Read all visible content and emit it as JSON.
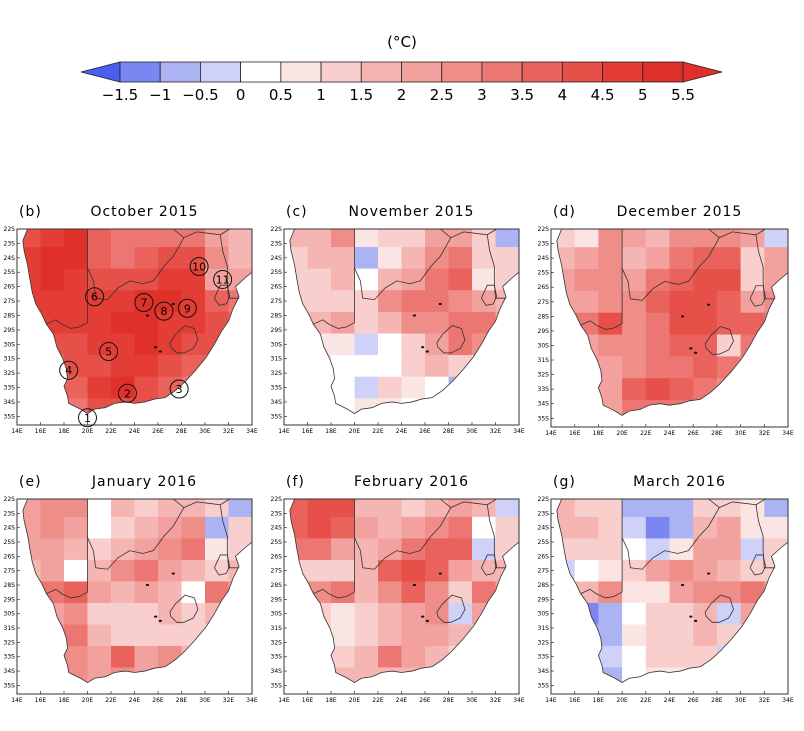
{
  "chart_data": {
    "type": "heatmap",
    "title": "",
    "colorbar": {
      "unit_label": "(°C)",
      "levels": [
        -1.5,
        -1,
        -0.5,
        0,
        0.5,
        1,
        1.5,
        2,
        2.5,
        3,
        3.5,
        4,
        4.5,
        5,
        5.5
      ],
      "tick_labels": [
        "−1.5",
        "−1",
        "−0.5",
        "0",
        "0.5",
        "1",
        "1.5",
        "2",
        "2.5",
        "3",
        "3.5",
        "4",
        "4.5",
        "5",
        "5.5"
      ],
      "colors": [
        "#4a5ef0",
        "#7b86f0",
        "#acb3f3",
        "#cfd1f8",
        "#ffffff",
        "#fbe5e4",
        "#f8cfcd",
        "#f5b6b3",
        "#f2a19e",
        "#ef8d89",
        "#ec7772",
        "#e9625c",
        "#e65048",
        "#e33d35",
        "#e0302a",
        "#e0302a"
      ],
      "extend": "both",
      "orientation": "horizontal",
      "placement": "top"
    },
    "axes": {
      "x_ticks": [
        "14E",
        "16E",
        "18E",
        "20E",
        "22E",
        "24E",
        "26E",
        "28E",
        "30E",
        "32E",
        "34E"
      ],
      "x_tick_values": [
        14,
        16,
        18,
        20,
        22,
        24,
        26,
        28,
        30,
        32,
        34
      ],
      "y_ticks": [
        "22S",
        "23S",
        "24S",
        "25S",
        "26S",
        "27S",
        "28S",
        "29S",
        "30S",
        "31S",
        "32S",
        "33S",
        "34S",
        "35S"
      ],
      "y_tick_values": [
        22,
        23,
        24,
        25,
        26,
        27,
        28,
        29,
        30,
        31,
        32,
        33,
        34,
        35
      ],
      "xlim": [
        14,
        34
      ],
      "ylim_south": [
        22,
        35.6
      ]
    },
    "grid": {
      "lon": [
        15,
        17,
        19,
        21,
        23,
        25,
        27,
        29,
        31,
        33
      ],
      "lat_south": [
        22.5,
        24,
        25.5,
        27,
        28.5,
        30,
        31.5,
        33,
        34.5
      ]
    },
    "panels": [
      {
        "letter": "(b)",
        "title": "October 2015",
        "stations": [
          {
            "label": "1",
            "lon": 20.0,
            "lat_south": 35.1
          },
          {
            "label": "2",
            "lon": 23.4,
            "lat_south": 33.4
          },
          {
            "label": "3",
            "lon": 27.8,
            "lat_south": 33.1
          },
          {
            "label": "4",
            "lon": 18.4,
            "lat_south": 31.8
          },
          {
            "label": "5",
            "lon": 21.8,
            "lat_south": 30.5
          },
          {
            "label": "6",
            "lon": 20.6,
            "lat_south": 26.7
          },
          {
            "label": "7",
            "lon": 24.8,
            "lat_south": 27.1
          },
          {
            "label": "8",
            "lon": 26.5,
            "lat_south": 27.7
          },
          {
            "label": "9",
            "lon": 28.5,
            "lat_south": 27.5
          },
          {
            "label": "10",
            "lon": 29.5,
            "lat_south": 24.6
          },
          {
            "label": "11",
            "lon": 31.5,
            "lat_south": 25.5
          }
        ],
        "values": [
          [
            4.2,
            4.8,
            5.0,
            3.6,
            3.0,
            3.2,
            3.4,
            3.0,
            2.4,
            1.6
          ],
          [
            4.6,
            5.0,
            5.0,
            3.8,
            3.4,
            3.6,
            4.2,
            4.0,
            2.6,
            1.8
          ],
          [
            4.8,
            5.0,
            4.8,
            4.4,
            4.0,
            4.4,
            4.8,
            4.6,
            2.0,
            2.2
          ],
          [
            4.6,
            4.8,
            4.6,
            4.6,
            4.8,
            5.0,
            5.0,
            4.8,
            3.8,
            3.0
          ],
          [
            4.0,
            4.6,
            4.6,
            4.8,
            5.0,
            5.0,
            4.8,
            4.6,
            4.4,
            3.6
          ],
          [
            3.6,
            4.2,
            4.4,
            4.6,
            4.8,
            5.0,
            4.6,
            4.4,
            4.2,
            3.4
          ],
          [
            3.2,
            3.8,
            4.0,
            4.4,
            4.6,
            4.6,
            4.2,
            3.8,
            3.0,
            2.6
          ],
          [
            3.0,
            3.4,
            3.6,
            4.6,
            5.0,
            4.4,
            3.8,
            3.2,
            2.4,
            2.0
          ],
          [
            2.8,
            3.0,
            3.4,
            4.0,
            4.4,
            4.0,
            3.4,
            2.8,
            2.2,
            1.8
          ]
        ]
      },
      {
        "letter": "(c)",
        "title": "November 2015",
        "stations": [],
        "values": [
          [
            1.6,
            1.8,
            2.6,
            0.6,
            1.4,
            1.4,
            2.0,
            2.2,
            1.4,
            -0.8
          ],
          [
            1.4,
            1.6,
            1.8,
            -0.6,
            0.8,
            1.8,
            2.8,
            3.2,
            1.2,
            1.0
          ],
          [
            1.2,
            1.4,
            1.6,
            0.4,
            1.6,
            2.4,
            3.4,
            3.6,
            0.6,
            1.2
          ],
          [
            1.0,
            1.2,
            1.0,
            1.4,
            2.6,
            3.2,
            3.0,
            2.8,
            2.4,
            1.6
          ],
          [
            1.4,
            1.6,
            2.4,
            1.2,
            1.6,
            2.8,
            2.6,
            3.4,
            3.2,
            2.2
          ],
          [
            0.6,
            0.8,
            0.6,
            -0.2,
            0.4,
            1.4,
            2.4,
            3.0,
            2.6,
            1.8
          ],
          [
            0.8,
            0.6,
            0.4,
            0.0,
            0.4,
            1.0,
            1.6,
            1.2,
            0.6,
            0.4
          ],
          [
            1.0,
            0.8,
            0.4,
            -0.2,
            1.4,
            0.6,
            0.2,
            -0.6,
            0.0,
            0.2
          ],
          [
            0.8,
            0.6,
            0.4,
            0.6,
            0.8,
            0.4,
            0.2,
            0.0,
            0.0,
            0.0
          ]
        ]
      },
      {
        "letter": "(d)",
        "title": "December 2015",
        "stations": [],
        "values": [
          [
            1.0,
            0.6,
            2.6,
            2.2,
            1.8,
            2.6,
            2.8,
            2.8,
            2.2,
            -0.4
          ],
          [
            1.8,
            2.4,
            2.6,
            1.8,
            2.2,
            3.2,
            3.6,
            3.6,
            1.4,
            2.0
          ],
          [
            2.2,
            2.8,
            2.6,
            2.4,
            3.0,
            3.6,
            4.2,
            4.0,
            1.2,
            2.4
          ],
          [
            2.4,
            2.2,
            2.8,
            2.8,
            3.6,
            4.4,
            4.2,
            3.8,
            2.4,
            2.6
          ],
          [
            2.6,
            3.2,
            4.0,
            2.6,
            3.2,
            4.0,
            4.2,
            3.6,
            3.8,
            3.0
          ],
          [
            2.2,
            2.4,
            2.6,
            2.8,
            3.0,
            3.6,
            3.8,
            1.4,
            3.4,
            3.2
          ],
          [
            2.0,
            2.2,
            2.4,
            2.8,
            3.2,
            3.4,
            3.6,
            3.2,
            2.8,
            2.4
          ],
          [
            1.6,
            1.4,
            2.2,
            3.6,
            4.2,
            3.6,
            3.2,
            2.8,
            2.4,
            2.0
          ],
          [
            1.4,
            1.6,
            2.4,
            3.0,
            3.2,
            3.0,
            2.6,
            2.4,
            2.0,
            1.8
          ]
        ]
      },
      {
        "letter": "(e)",
        "title": "January 2016",
        "stations": [],
        "values": [
          [
            2.4,
            2.6,
            2.8,
            0.4,
            1.6,
            1.2,
            1.8,
            1.6,
            1.4,
            -0.8
          ],
          [
            2.2,
            2.6,
            2.4,
            0.2,
            1.2,
            1.6,
            2.4,
            2.8,
            -0.6,
            1.2
          ],
          [
            2.0,
            2.2,
            1.8,
            1.2,
            1.6,
            2.2,
            2.8,
            3.2,
            0.8,
            1.4
          ],
          [
            1.8,
            2.0,
            0.4,
            1.6,
            2.8,
            3.0,
            2.4,
            1.8,
            1.4,
            1.6
          ],
          [
            2.2,
            3.2,
            3.8,
            2.0,
            1.8,
            2.0,
            1.6,
            0.4,
            3.0,
            2.2
          ],
          [
            2.0,
            2.4,
            2.6,
            1.2,
            1.0,
            1.4,
            1.8,
            1.2,
            1.6,
            1.4
          ],
          [
            2.2,
            2.8,
            3.2,
            1.8,
            1.2,
            1.0,
            1.4,
            1.2,
            0.8,
            0.6
          ],
          [
            2.4,
            3.4,
            2.8,
            2.4,
            3.6,
            2.4,
            2.6,
            1.6,
            1.0,
            0.8
          ],
          [
            2.0,
            2.4,
            2.6,
            2.2,
            2.6,
            2.2,
            2.0,
            1.4,
            1.0,
            0.8
          ]
        ]
      },
      {
        "letter": "(f)",
        "title": "February 2016",
        "stations": [],
        "values": [
          [
            3.6,
            4.0,
            4.2,
            1.6,
            1.8,
            1.4,
            1.8,
            2.2,
            1.8,
            -0.4
          ],
          [
            3.8,
            4.2,
            3.6,
            2.0,
            1.6,
            2.2,
            2.8,
            3.0,
            0.4,
            1.2
          ],
          [
            3.0,
            3.2,
            2.4,
            1.8,
            2.4,
            3.4,
            3.8,
            3.6,
            -0.4,
            1.4
          ],
          [
            1.2,
            1.4,
            1.0,
            1.8,
            3.6,
            4.4,
            3.6,
            2.4,
            1.6,
            1.8
          ],
          [
            2.0,
            2.6,
            3.4,
            1.6,
            2.6,
            3.6,
            2.8,
            1.2,
            3.4,
            2.4
          ],
          [
            0.8,
            1.0,
            0.6,
            1.4,
            1.6,
            2.2,
            2.6,
            -0.2,
            2.2,
            1.8
          ],
          [
            1.2,
            1.4,
            0.8,
            1.2,
            1.8,
            2.0,
            2.2,
            1.8,
            1.4,
            1.2
          ],
          [
            1.4,
            1.2,
            1.2,
            1.8,
            3.2,
            2.2,
            1.8,
            1.4,
            1.2,
            1.0
          ],
          [
            1.2,
            1.4,
            1.6,
            1.6,
            1.8,
            1.6,
            1.4,
            1.2,
            1.0,
            0.8
          ]
        ]
      },
      {
        "letter": "(g)",
        "title": "March 2016",
        "stations": [],
        "values": [
          [
            1.8,
            1.4,
            1.2,
            -0.6,
            -0.8,
            -0.6,
            1.2,
            1.4,
            0.8,
            -0.6
          ],
          [
            1.6,
            1.8,
            1.4,
            -0.4,
            -1.2,
            -0.8,
            1.6,
            2.0,
            0.6,
            0.8
          ],
          [
            1.4,
            1.2,
            1.0,
            0.2,
            -0.2,
            0.8,
            2.2,
            2.2,
            -0.4,
            1.0
          ],
          [
            -0.4,
            0.0,
            0.6,
            1.2,
            2.4,
            2.8,
            2.2,
            1.6,
            1.4,
            1.2
          ],
          [
            0.8,
            1.6,
            2.6,
            0.6,
            0.8,
            2.0,
            2.6,
            2.8,
            3.2,
            2.0
          ],
          [
            -0.6,
            -1.2,
            -0.8,
            0.4,
            1.0,
            1.4,
            1.6,
            -0.4,
            2.4,
            2.0
          ],
          [
            -0.4,
            -0.8,
            -0.6,
            0.6,
            1.4,
            1.2,
            1.6,
            1.4,
            1.0,
            0.8
          ],
          [
            -0.6,
            -1.4,
            -0.4,
            0.4,
            1.4,
            1.0,
            1.2,
            -0.2,
            0.6,
            0.4
          ],
          [
            -0.2,
            -0.8,
            -0.6,
            0.0,
            0.6,
            0.8,
            0.6,
            0.2,
            0.2,
            0.2
          ]
        ]
      }
    ]
  }
}
